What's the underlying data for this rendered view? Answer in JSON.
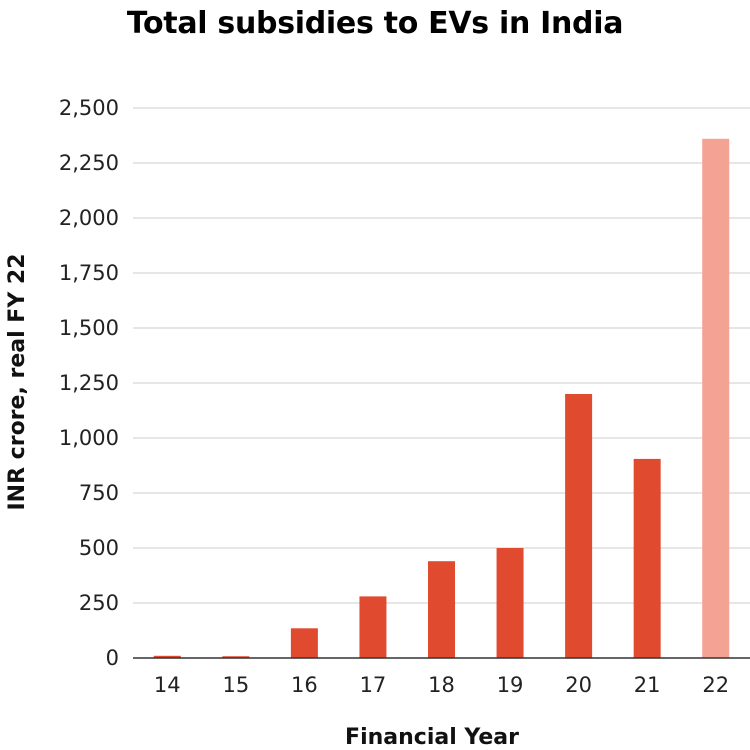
{
  "chart_data": {
    "type": "bar",
    "title": "Total subsidies to EVs in India",
    "xlabel": "Financial Year",
    "ylabel": "INR crore, real FY 22",
    "categories": [
      "14",
      "15",
      "16",
      "17",
      "18",
      "19",
      "20",
      "21",
      "22"
    ],
    "values": [
      10,
      8,
      135,
      280,
      440,
      500,
      1200,
      905,
      2360
    ],
    "ylim": [
      0,
      2500
    ],
    "yticks": [
      0,
      250,
      500,
      750,
      1000,
      1250,
      1500,
      1750,
      2000,
      2250,
      2500
    ],
    "ytick_labels": [
      "0",
      "250",
      "500",
      "750",
      "1,000",
      "1,250",
      "1,500",
      "1,750",
      "2,000",
      "2,250",
      "2,500"
    ],
    "grid": true,
    "colors": {
      "bar": "#e04a2f",
      "highlight_bar": "#f4a294",
      "grid": "#cccccc",
      "axis": "#333333"
    },
    "highlight_categories": [
      "22"
    ]
  }
}
